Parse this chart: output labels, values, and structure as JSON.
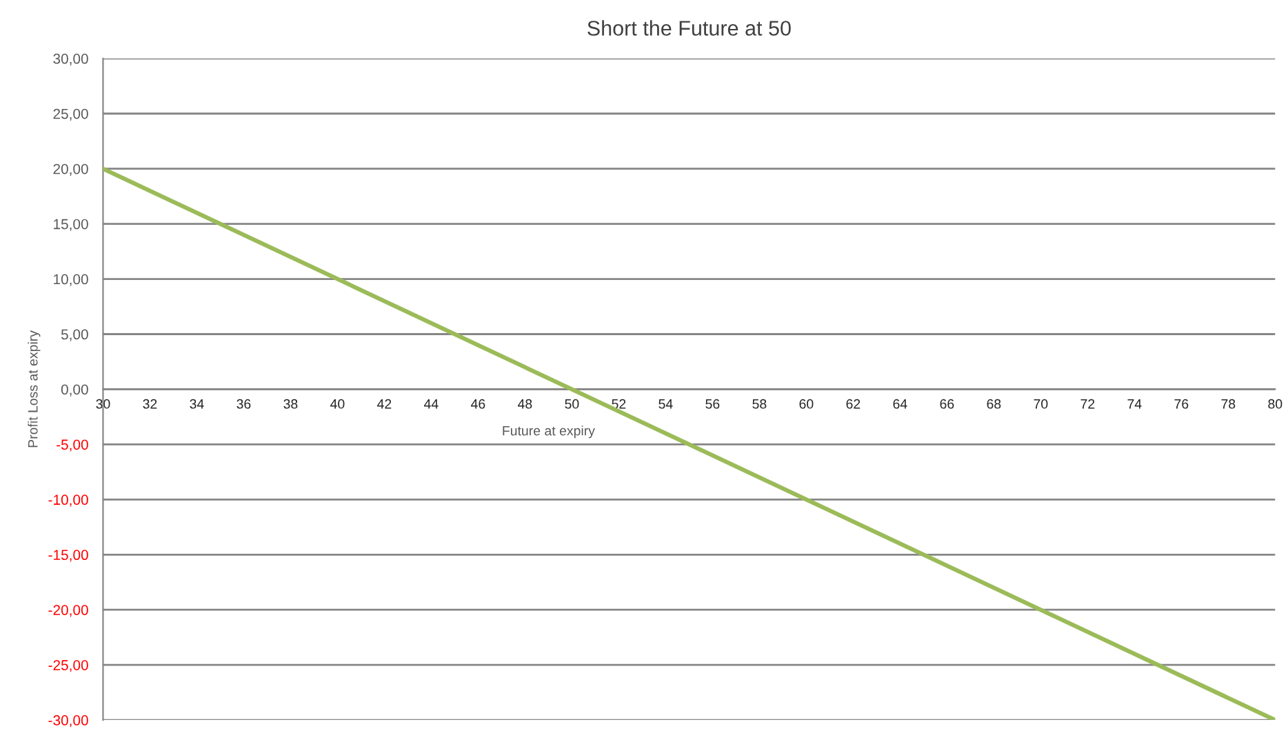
{
  "chart_data": {
    "type": "line",
    "title": "Short the Future at 50",
    "xlabel": "Future at expiry",
    "ylabel": "Profit Loss at expiry",
    "series": [
      {
        "color": "#9bbb59",
        "x": [
          30,
          50,
          80
        ],
        "values": [
          20,
          0,
          -30
        ]
      }
    ],
    "xlim": [
      30,
      80
    ],
    "xticks": [
      30,
      32,
      34,
      36,
      38,
      40,
      42,
      44,
      46,
      48,
      50,
      52,
      54,
      56,
      58,
      60,
      62,
      64,
      66,
      68,
      70,
      72,
      74,
      76,
      78,
      80
    ],
    "ylim": [
      -30,
      30
    ],
    "yticks": [
      {
        "value": -30,
        "label": "-30,00"
      },
      {
        "value": -25,
        "label": "-25,00"
      },
      {
        "value": -20,
        "label": "-20,00"
      },
      {
        "value": -15,
        "label": "-15,00"
      },
      {
        "value": -10,
        "label": "-10,00"
      },
      {
        "value": -5,
        "label": "-5,00"
      },
      {
        "value": 0,
        "label": "0,00"
      },
      {
        "value": 5,
        "label": "5,00"
      },
      {
        "value": 10,
        "label": "10,00"
      },
      {
        "value": 15,
        "label": "15,00"
      },
      {
        "value": 20,
        "label": "20,00"
      },
      {
        "value": 25,
        "label": "25,00"
      },
      {
        "value": 30,
        "label": "30,00"
      }
    ],
    "grid": "y",
    "marker": "none",
    "line_style": "solid"
  }
}
